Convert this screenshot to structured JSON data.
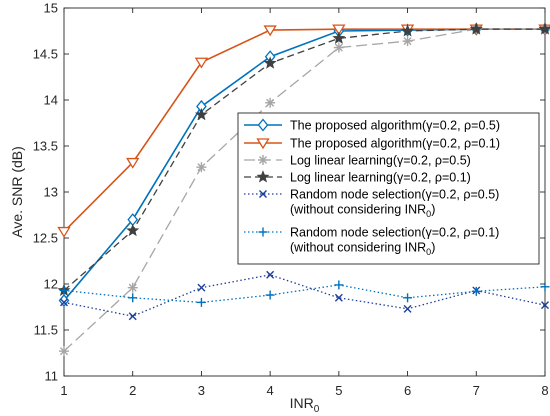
{
  "chart_data": {
    "type": "line",
    "xlabel": "INR",
    "xlabel_sub": "0",
    "ylabel": "Ave. SNR (dB)",
    "xlim": [
      1,
      8
    ],
    "ylim": [
      11,
      15
    ],
    "x_ticks": [
      1,
      2,
      3,
      4,
      5,
      6,
      7,
      8
    ],
    "y_ticks": [
      11,
      11.5,
      12,
      12.5,
      13,
      13.5,
      14,
      14.5,
      15
    ],
    "y_tick_labels": [
      "11",
      "11.5",
      "12",
      "12.5",
      "13",
      "13.5",
      "14",
      "14.5",
      "15"
    ],
    "grid": false,
    "legend_position": "right",
    "x": [
      1,
      2,
      3,
      4,
      5,
      6,
      7,
      8
    ],
    "series": [
      {
        "legend_line1": "The proposed algorithm(γ=0.2, ρ=0.5)",
        "color": "#0072bd",
        "marker": "diamond",
        "dash": "solid",
        "values": [
          11.82,
          12.7,
          13.93,
          14.47,
          14.75,
          14.76,
          14.77,
          14.77
        ]
      },
      {
        "legend_line1": "The proposed algorithm(γ=0.2, ρ=0.1)",
        "color": "#d95319",
        "marker": "triangle-down",
        "dash": "solid",
        "values": [
          12.57,
          13.32,
          14.41,
          14.76,
          14.77,
          14.77,
          14.77,
          14.77
        ]
      },
      {
        "legend_line1": "Log linear learning(γ=0.2, ρ=0.5)",
        "color": "#a6a6a6",
        "marker": "asterisk",
        "dash": "dashed-long",
        "values": [
          11.27,
          11.96,
          13.27,
          13.97,
          14.57,
          14.64,
          14.77,
          14.77
        ]
      },
      {
        "legend_line1": "Log linear learning(γ=0.2, ρ=0.1)",
        "color": "#404040",
        "marker": "star",
        "dash": "dashed",
        "values": [
          11.93,
          12.58,
          13.84,
          14.4,
          14.67,
          14.75,
          14.77,
          14.77
        ]
      },
      {
        "legend_line1": "Random node selection(γ=0.2, ρ=0.5)",
        "legend_line2": "(without considering INR",
        "legend_line2_sub": "0",
        "legend_line2_end": ")",
        "color": "#1f3f9a",
        "marker": "x",
        "dash": "dotted",
        "values": [
          11.8,
          11.65,
          11.96,
          12.1,
          11.85,
          11.73,
          11.93,
          11.77
        ]
      },
      {
        "legend_line1": "Random node selection(γ=0.2, ρ=0.1)",
        "legend_line2": "(without considering INR",
        "legend_line2_sub": "0",
        "legend_line2_end": ")",
        "color": "#0072bd",
        "marker": "plus",
        "dash": "dotted",
        "values": [
          11.93,
          11.85,
          11.8,
          11.88,
          11.99,
          11.85,
          11.92,
          11.97
        ]
      }
    ]
  }
}
